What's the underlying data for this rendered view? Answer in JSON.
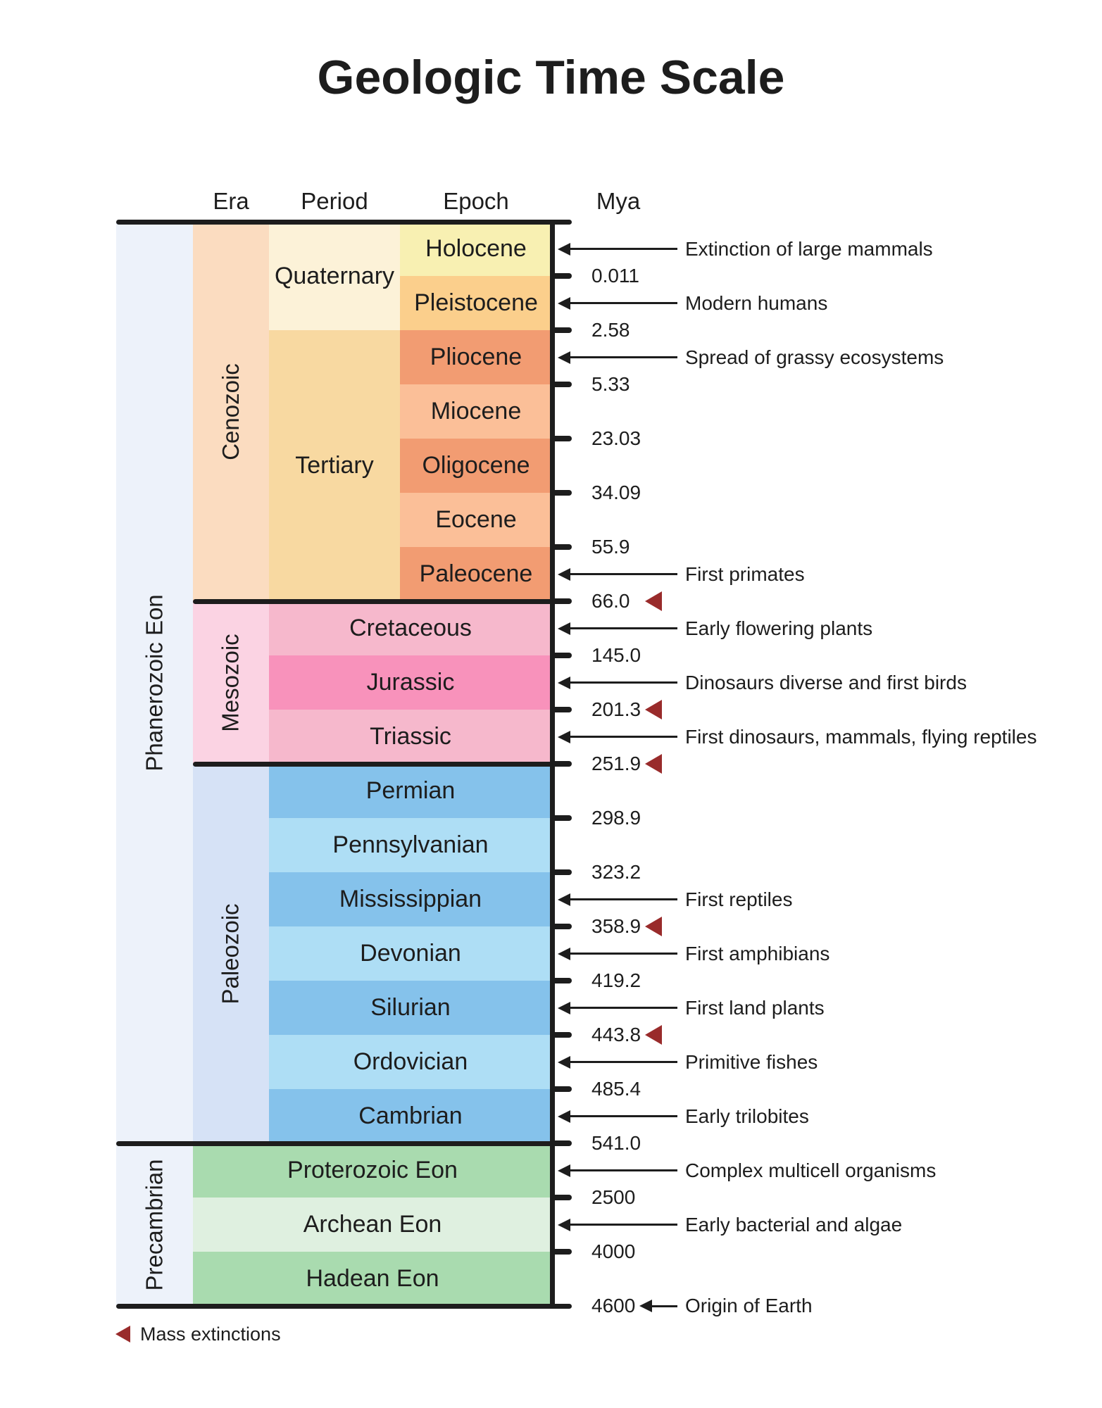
{
  "title": "Geologic Time Scale",
  "column_headers": {
    "era": "Era",
    "period": "Period",
    "epoch": "Epoch",
    "mya": "Mya"
  },
  "legend": {
    "label": "Mass extinctions",
    "color": "#992B2B"
  },
  "colors": {
    "mass_extinction": "#992B2B",
    "line": "#1D1D1D",
    "text": "#1D1D1D",
    "eon_column": "#EDF2FA"
  },
  "chart_data": {
    "type": "table",
    "title": "Geologic Time Scale",
    "unit": "Mya",
    "row_count": 20,
    "eon_column": [
      {
        "label": "Phanerozoic Eon",
        "rows": [
          0,
          16
        ],
        "color": "#EDF2FA"
      },
      {
        "label": "Precambrian",
        "rows": [
          17,
          19
        ],
        "color": "#EDF2FA"
      }
    ],
    "era_column": [
      {
        "label": "Cenozoic",
        "rows": [
          0,
          6
        ],
        "color": "#FBDCC0"
      },
      {
        "label": "Mesozoic",
        "rows": [
          7,
          9
        ],
        "color": "#FBD3E3"
      },
      {
        "label": "Paleozoic",
        "rows": [
          10,
          16
        ],
        "color": "#D6E2F6"
      }
    ],
    "period_column": [
      {
        "label": "Quaternary",
        "rows": [
          0,
          1
        ],
        "color": "#FCF2D8",
        "span": "period"
      },
      {
        "label": "Tertiary",
        "rows": [
          2,
          6
        ],
        "color": "#F8D9A1",
        "span": "period"
      },
      {
        "label": "Cretaceous",
        "rows": [
          7,
          7
        ],
        "color": "#F6B8CC",
        "span": "wide"
      },
      {
        "label": "Jurassic",
        "rows": [
          8,
          8
        ],
        "color": "#F892BB",
        "span": "wide"
      },
      {
        "label": "Triassic",
        "rows": [
          9,
          9
        ],
        "color": "#F6B8CC",
        "span": "wide"
      },
      {
        "label": "Permian",
        "rows": [
          10,
          10
        ],
        "color": "#85C2EB",
        "span": "wide"
      },
      {
        "label": "Pennsylvanian",
        "rows": [
          11,
          11
        ],
        "color": "#AEDEF5",
        "span": "wide"
      },
      {
        "label": "Mississippian",
        "rows": [
          12,
          12
        ],
        "color": "#85C2EB",
        "span": "wide"
      },
      {
        "label": "Devonian",
        "rows": [
          13,
          13
        ],
        "color": "#AEDEF5",
        "span": "wide"
      },
      {
        "label": "Silurian",
        "rows": [
          14,
          14
        ],
        "color": "#85C2EB",
        "span": "wide"
      },
      {
        "label": "Ordovician",
        "rows": [
          15,
          15
        ],
        "color": "#AEDEF5",
        "span": "wide"
      },
      {
        "label": "Cambrian",
        "rows": [
          16,
          16
        ],
        "color": "#85C2EB",
        "span": "wide"
      },
      {
        "label": "Proterozoic Eon",
        "rows": [
          17,
          17
        ],
        "color": "#A9DBAF",
        "span": "extra-wide"
      },
      {
        "label": "Archean Eon",
        "rows": [
          18,
          18
        ],
        "color": "#DFF0E0",
        "span": "extra-wide"
      },
      {
        "label": "Hadean Eon",
        "rows": [
          19,
          19
        ],
        "color": "#A9DBAF",
        "span": "extra-wide"
      }
    ],
    "epoch_column": [
      {
        "label": "Holocene",
        "rows": [
          0,
          0
        ],
        "color": "#F8F0B2"
      },
      {
        "label": "Pleistocene",
        "rows": [
          1,
          1
        ],
        "color": "#FBCF8C"
      },
      {
        "label": "Pliocene",
        "rows": [
          2,
          2
        ],
        "color": "#F29C72"
      },
      {
        "label": "Miocene",
        "rows": [
          3,
          3
        ],
        "color": "#FBBF98"
      },
      {
        "label": "Oligocene",
        "rows": [
          4,
          4
        ],
        "color": "#F29C72"
      },
      {
        "label": "Eocene",
        "rows": [
          5,
          5
        ],
        "color": "#FBBF98"
      },
      {
        "label": "Paleocene",
        "rows": [
          6,
          6
        ],
        "color": "#F29C72"
      }
    ],
    "boundaries": [
      {
        "after_row": 0,
        "mya": "0.011",
        "mass_extinction": false
      },
      {
        "after_row": 1,
        "mya": "2.58",
        "mass_extinction": false
      },
      {
        "after_row": 2,
        "mya": "5.33",
        "mass_extinction": false
      },
      {
        "after_row": 3,
        "mya": "23.03",
        "mass_extinction": false
      },
      {
        "after_row": 4,
        "mya": "34.09",
        "mass_extinction": false
      },
      {
        "after_row": 5,
        "mya": "55.9",
        "mass_extinction": false
      },
      {
        "after_row": 6,
        "mya": "66.0",
        "mass_extinction": true
      },
      {
        "after_row": 7,
        "mya": "145.0",
        "mass_extinction": false
      },
      {
        "after_row": 8,
        "mya": "201.3",
        "mass_extinction": true
      },
      {
        "after_row": 9,
        "mya": "251.9",
        "mass_extinction": true
      },
      {
        "after_row": 10,
        "mya": "298.9",
        "mass_extinction": false
      },
      {
        "after_row": 11,
        "mya": "323.2",
        "mass_extinction": false
      },
      {
        "after_row": 12,
        "mya": "358.9",
        "mass_extinction": true
      },
      {
        "after_row": 13,
        "mya": "419.2",
        "mass_extinction": false
      },
      {
        "after_row": 14,
        "mya": "443.8",
        "mass_extinction": true
      },
      {
        "after_row": 15,
        "mya": "485.4",
        "mass_extinction": false
      },
      {
        "after_row": 16,
        "mya": "541.0",
        "mass_extinction": false
      },
      {
        "after_row": 17,
        "mya": "2500",
        "mass_extinction": false
      },
      {
        "after_row": 18,
        "mya": "4000",
        "mass_extinction": false
      },
      {
        "after_row": 19,
        "mya": "4600",
        "mass_extinction": false
      }
    ],
    "major_dividers": [
      {
        "after_row": 6,
        "from": "era"
      },
      {
        "after_row": 9,
        "from": "era"
      },
      {
        "after_row": 16,
        "from": "eon"
      }
    ],
    "annotations": [
      {
        "text": "Extinction of large mammals",
        "row": 0
      },
      {
        "text": "Modern humans",
        "row": 1
      },
      {
        "text": "Spread of grassy ecosystems",
        "row": 2
      },
      {
        "text": "First primates",
        "row": 6
      },
      {
        "text": "Early flowering plants",
        "row": 7
      },
      {
        "text": "Dinosaurs diverse and first birds",
        "row": 8
      },
      {
        "text": "First dinosaurs, mammals, flying reptiles",
        "row": 9
      },
      {
        "text": "First reptiles",
        "row": 12
      },
      {
        "text": "First amphibians",
        "row": 13
      },
      {
        "text": "First land plants",
        "row": 14
      },
      {
        "text": "Primitive fishes",
        "row": 15
      },
      {
        "text": "Early trilobites",
        "row": 16
      },
      {
        "text": "Complex multicell organisms",
        "row": 17
      },
      {
        "text": "Early bacterial and algae",
        "row": 18
      },
      {
        "text": "Origin of Earth",
        "anchor": "bottom"
      }
    ]
  }
}
